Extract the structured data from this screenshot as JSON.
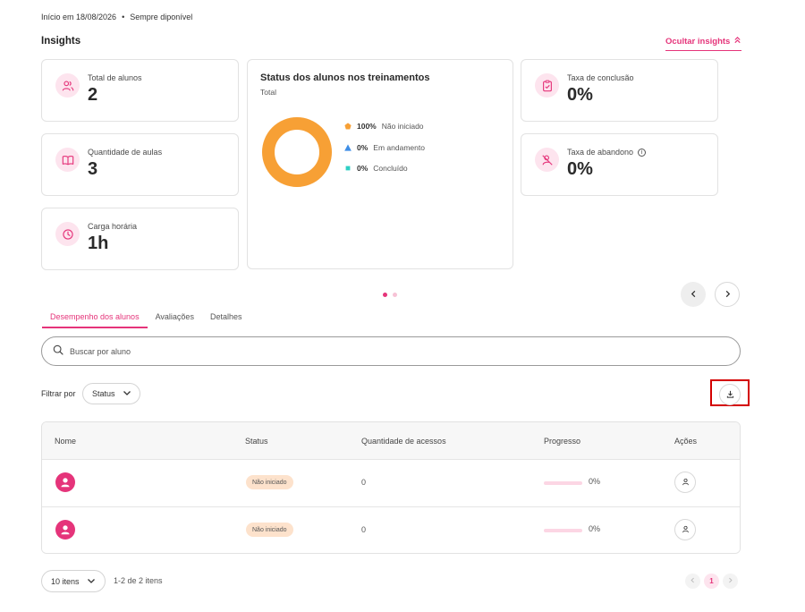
{
  "header": {
    "start_text": "Início em 18/08/2026",
    "separator": "•",
    "availability": "Sempre diponível"
  },
  "insights": {
    "title": "Insights",
    "hide_label": "Ocultar insights",
    "cards": [
      {
        "label": "Total de alunos",
        "value": "2",
        "icon": "users-icon"
      },
      {
        "label": "Quantidade de aulas",
        "value": "3",
        "icon": "book-icon"
      },
      {
        "label": "Carga horária",
        "value": "1h",
        "icon": "clock-icon"
      },
      {
        "label": "Taxa de conclusão",
        "value": "0%",
        "icon": "clipboard-check-icon"
      },
      {
        "label": "Taxa de abandono",
        "value": "0%",
        "icon": "user-x-icon"
      }
    ],
    "info_glyph": "i",
    "colors": {
      "accent": "#e5347a",
      "icon_bg": "#fde4ee"
    }
  },
  "chart_data": {
    "type": "pie",
    "title": "Status dos alunos nos treinamentos",
    "subtitle": "Total",
    "slices": [
      {
        "pct_label": "100%",
        "name": "Não iniciado",
        "value": 100,
        "color": "#f7a035",
        "marker": "pentagon"
      },
      {
        "pct_label": "0%",
        "name": "Em andamento",
        "value": 0,
        "color": "#3f8ee6",
        "marker": "triangle"
      },
      {
        "pct_label": "0%",
        "name": "Concluído",
        "value": 0,
        "color": "#2ecfc4",
        "marker": "square"
      }
    ]
  },
  "carousel": {
    "pages": 2,
    "active": 0
  },
  "tabs": [
    {
      "label": "Desempenho dos alunos",
      "active": true
    },
    {
      "label": "Avaliações",
      "active": false
    },
    {
      "label": "Detalhes",
      "active": false
    }
  ],
  "search": {
    "placeholder": "Buscar por aluno",
    "value": ""
  },
  "filter": {
    "label": "Filtrar por",
    "status_label": "Status"
  },
  "table": {
    "columns": [
      "Nome",
      "Status",
      "Quantidade de acessos",
      "Progresso",
      "Ações"
    ],
    "rows": [
      {
        "name": "",
        "status": "Não iniciado",
        "accesses": "0",
        "progress": 0,
        "progress_text": "0%"
      },
      {
        "name": "",
        "status": "Não iniciado",
        "accesses": "0",
        "progress": 0,
        "progress_text": "0%"
      }
    ]
  },
  "pagination": {
    "per_page": "10 itens",
    "range": "1-2 de 2 itens",
    "current_page": "1"
  }
}
